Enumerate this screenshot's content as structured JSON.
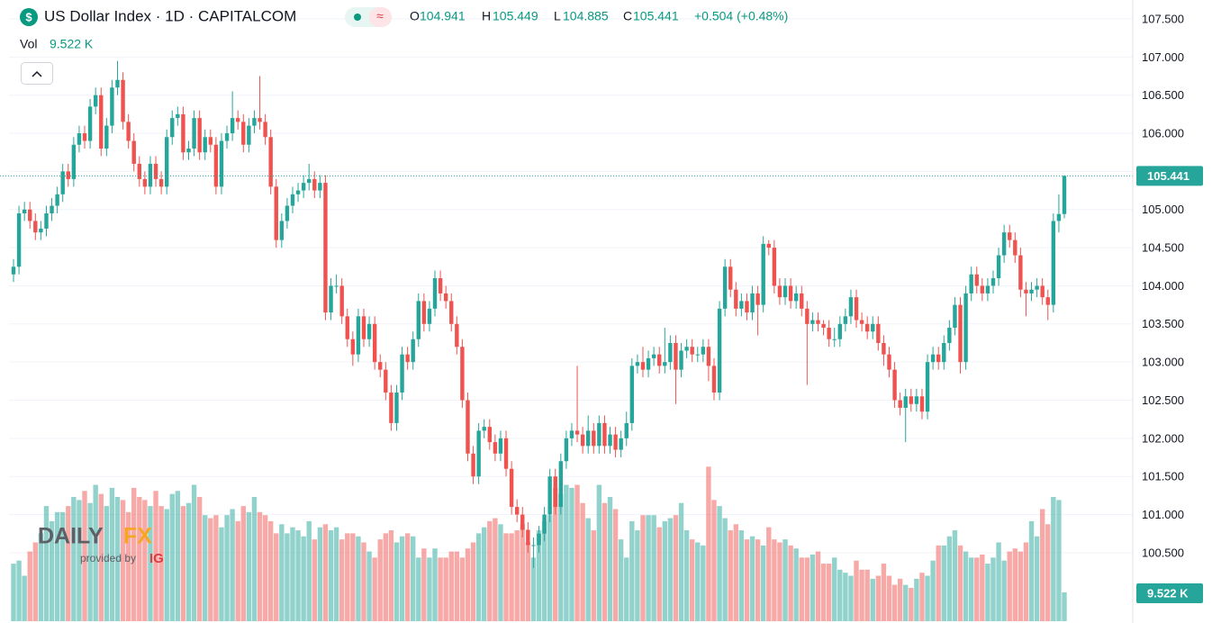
{
  "chart_data": {
    "type": "candlestick",
    "title": "US Dollar Index · 1D · CAPITALCOM",
    "ohlc_letters": [
      "O",
      "H",
      "L",
      "C"
    ],
    "change_label": "+0.504 (+0.48%)",
    "volume_title": "Vol",
    "last_volume_label": "9.522 K",
    "up_color": "#26a69a",
    "down_color": "#ef5350",
    "grid": true,
    "ylim": [
      99.578,
      107.748
    ],
    "volume_lim": [
      0,
      205
    ],
    "yticks": [
      {
        "value": 100.5,
        "label": "100.500"
      },
      {
        "value": 101,
        "label": "101.000"
      },
      {
        "value": 101.5,
        "label": "101.500"
      },
      {
        "value": 102,
        "label": "102.000"
      },
      {
        "value": 102.5,
        "label": "102.500"
      },
      {
        "value": 103,
        "label": "103.000"
      },
      {
        "value": 103.5,
        "label": "103.500"
      },
      {
        "value": 104,
        "label": "104.000"
      },
      {
        "value": 104.5,
        "label": "104.500"
      },
      {
        "value": 105,
        "label": "105.000"
      },
      {
        "value": 105.5,
        "label": "105.500"
      },
      {
        "value": 106,
        "label": "106.000"
      },
      {
        "value": 106.5,
        "label": "106.500"
      },
      {
        "value": 107,
        "label": "107.000"
      },
      {
        "value": 107.5,
        "label": "107.500"
      }
    ],
    "open": [
      104.15,
      104.25,
      104.95,
      105.0,
      104.85,
      104.7,
      104.75,
      104.95,
      105.05,
      105.2,
      105.5,
      105.4,
      105.85,
      106.0,
      105.9,
      106.35,
      106.5,
      105.8,
      106.1,
      106.6,
      106.7,
      106.15,
      105.9,
      105.6,
      105.4,
      105.3,
      105.6,
      105.4,
      105.3,
      105.95,
      106.2,
      106.25,
      105.75,
      105.8,
      106.2,
      105.75,
      105.95,
      105.85,
      105.3,
      105.9,
      106.0,
      106.2,
      106.15,
      105.85,
      106.1,
      106.2,
      106.15,
      105.95,
      105.3,
      104.6,
      104.85,
      105.05,
      105.2,
      105.25,
      105.35,
      105.4,
      105.25,
      105.35,
      103.65,
      104.0,
      104.0,
      103.6,
      103.3,
      103.1,
      103.6,
      103.3,
      103.5,
      103.0,
      102.9,
      102.6,
      102.2,
      102.6,
      103.1,
      103.0,
      103.3,
      103.8,
      103.5,
      103.7,
      104.1,
      103.9,
      103.8,
      103.5,
      103.2,
      102.5,
      101.8,
      101.5,
      102.1,
      102.15,
      101.95,
      101.8,
      102.0,
      101.6,
      101.1,
      101.0,
      100.8,
      100.6,
      100.6,
      100.75,
      101.0,
      101.5,
      101.1,
      101.7,
      102.0,
      102.1,
      102.05,
      101.9,
      102.1,
      101.9,
      102.2,
      101.9,
      102.05,
      101.85,
      102.0,
      102.2,
      102.95,
      103.0,
      102.9,
      103.05,
      103.1,
      102.95,
      103.0,
      103.25,
      102.9,
      103.15,
      103.2,
      103.1,
      103.1,
      103.2,
      102.95,
      102.6,
      103.7,
      104.25,
      103.95,
      103.7,
      103.8,
      103.65,
      103.9,
      103.75,
      104.55,
      104.5,
      104.0,
      103.85,
      104.0,
      103.8,
      103.9,
      103.7,
      103.5,
      103.55,
      103.5,
      103.45,
      103.3,
      103.3,
      103.5,
      103.6,
      103.85,
      103.55,
      103.5,
      103.4,
      103.5,
      103.25,
      103.1,
      102.9,
      102.5,
      102.4,
      102.55,
      102.45,
      102.55,
      102.35,
      103.0,
      103.1,
      103.0,
      103.25,
      103.45,
      103.75,
      103.0,
      103.9,
      104.15,
      104.0,
      103.9,
      104.0,
      104.1,
      104.4,
      104.7,
      104.6,
      104.4,
      103.95,
      103.9,
      103.95,
      104.0,
      103.85,
      103.75,
      104.85,
      104.941
    ],
    "high": [
      104.35,
      105.05,
      105.1,
      105.1,
      104.95,
      104.85,
      105.05,
      105.15,
      105.3,
      105.6,
      105.6,
      105.95,
      106.1,
      106.1,
      106.45,
      106.6,
      106.6,
      106.2,
      106.7,
      106.95,
      106.8,
      106.25,
      106.0,
      105.7,
      105.5,
      105.7,
      105.7,
      105.5,
      106.05,
      106.3,
      106.35,
      106.35,
      105.9,
      106.3,
      106.3,
      106.05,
      106.05,
      105.95,
      106.0,
      106.1,
      106.55,
      106.3,
      106.25,
      106.2,
      106.3,
      106.75,
      106.25,
      106.05,
      105.4,
      104.95,
      105.15,
      105.3,
      105.35,
      105.45,
      105.6,
      105.5,
      105.45,
      105.45,
      104.1,
      104.15,
      104.1,
      103.7,
      103.4,
      103.7,
      103.7,
      103.6,
      103.6,
      103.1,
      103.0,
      102.7,
      102.7,
      103.2,
      103.2,
      103.4,
      103.9,
      103.9,
      103.8,
      104.2,
      104.2,
      104.0,
      103.9,
      103.6,
      103.3,
      102.6,
      101.9,
      102.2,
      102.25,
      102.25,
      102.05,
      102.1,
      102.1,
      101.7,
      101.2,
      101.1,
      100.9,
      100.7,
      100.85,
      101.1,
      101.6,
      101.6,
      101.8,
      102.1,
      102.2,
      102.95,
      102.15,
      102.3,
      102.2,
      102.3,
      102.3,
      102.15,
      102.15,
      102.1,
      102.35,
      103.05,
      103.1,
      103.2,
      103.15,
      103.2,
      103.2,
      103.45,
      103.35,
      103.35,
      103.25,
      103.3,
      103.3,
      103.2,
      103.3,
      103.3,
      103.05,
      103.8,
      104.35,
      104.35,
      104.05,
      103.9,
      103.9,
      104.0,
      104.0,
      104.65,
      104.6,
      104.6,
      104.1,
      104.1,
      104.1,
      104.0,
      104.0,
      103.8,
      103.65,
      103.65,
      103.55,
      103.55,
      103.45,
      103.6,
      103.7,
      103.95,
      103.95,
      103.65,
      103.6,
      103.6,
      103.6,
      103.35,
      103.2,
      103.0,
      102.6,
      102.65,
      102.65,
      102.65,
      102.65,
      103.1,
      103.2,
      103.2,
      103.35,
      103.55,
      103.85,
      103.85,
      104.0,
      104.25,
      104.25,
      104.1,
      104.1,
      104.2,
      104.5,
      104.8,
      104.8,
      104.7,
      104.5,
      104.05,
      104.05,
      104.1,
      104.1,
      103.95,
      104.95,
      105.2,
      105.449
    ],
    "low": [
      104.05,
      104.15,
      104.85,
      104.75,
      104.6,
      104.6,
      104.65,
      104.85,
      104.95,
      105.1,
      105.3,
      105.3,
      105.75,
      105.8,
      105.8,
      106.25,
      105.7,
      105.7,
      106.0,
      106.5,
      106.05,
      105.8,
      105.5,
      105.3,
      105.2,
      105.2,
      105.3,
      105.2,
      105.2,
      105.85,
      106.1,
      105.65,
      105.65,
      105.7,
      105.65,
      105.65,
      105.75,
      105.2,
      105.2,
      105.8,
      105.9,
      106.05,
      105.75,
      105.75,
      106.0,
      106.05,
      105.85,
      105.2,
      104.5,
      104.5,
      104.75,
      104.95,
      105.1,
      105.15,
      105.25,
      105.15,
      105.15,
      103.55,
      103.55,
      103.9,
      103.5,
      103.2,
      102.95,
      103.0,
      103.2,
      103.2,
      102.9,
      102.8,
      102.5,
      102.1,
      102.1,
      102.5,
      102.9,
      102.9,
      103.2,
      103.4,
      103.4,
      103.6,
      103.8,
      103.7,
      103.4,
      103.1,
      102.4,
      101.7,
      101.4,
      101.4,
      102.0,
      101.85,
      101.7,
      101.7,
      101.5,
      101.0,
      100.9,
      100.7,
      100.5,
      100.3,
      100.5,
      100.65,
      100.9,
      101.0,
      101.0,
      101.6,
      101.9,
      101.95,
      101.8,
      101.8,
      101.8,
      101.8,
      101.8,
      101.8,
      101.75,
      101.75,
      101.9,
      102.1,
      102.85,
      102.8,
      102.8,
      102.95,
      102.85,
      102.85,
      102.9,
      102.45,
      102.8,
      103.05,
      103.0,
      103.0,
      103.0,
      102.75,
      102.5,
      102.5,
      103.6,
      103.85,
      103.6,
      103.6,
      103.55,
      103.55,
      103.35,
      103.65,
      104.4,
      103.9,
      103.75,
      103.75,
      103.7,
      103.7,
      103.6,
      102.7,
      103.4,
      103.4,
      103.35,
      103.2,
      103.2,
      103.2,
      103.4,
      103.5,
      103.45,
      103.4,
      103.3,
      103.3,
      103.15,
      102.95,
      102.8,
      102.4,
      102.3,
      101.95,
      102.35,
      102.35,
      102.25,
      102.25,
      102.9,
      102.9,
      102.9,
      103.15,
      103.35,
      102.85,
      102.9,
      103.8,
      103.9,
      103.8,
      103.8,
      103.9,
      104.0,
      104.3,
      104.5,
      104.3,
      103.85,
      103.6,
      103.8,
      103.85,
      103.75,
      103.55,
      103.65,
      104.7,
      104.885
    ],
    "close": [
      104.25,
      104.95,
      105.0,
      104.85,
      104.7,
      104.75,
      104.95,
      105.05,
      105.2,
      105.5,
      105.4,
      105.85,
      106.0,
      105.9,
      106.35,
      106.5,
      105.8,
      106.1,
      106.6,
      106.7,
      106.15,
      105.9,
      105.6,
      105.4,
      105.3,
      105.6,
      105.4,
      105.3,
      105.95,
      106.2,
      106.25,
      105.75,
      105.8,
      106.2,
      105.75,
      105.95,
      105.85,
      105.3,
      105.9,
      106.0,
      106.2,
      106.15,
      105.85,
      106.1,
      106.2,
      106.15,
      105.95,
      105.3,
      104.6,
      104.85,
      105.05,
      105.2,
      105.25,
      105.35,
      105.4,
      105.25,
      105.35,
      103.65,
      104.0,
      104.0,
      103.6,
      103.3,
      103.1,
      103.6,
      103.3,
      103.5,
      103.0,
      102.9,
      102.6,
      102.2,
      102.6,
      103.1,
      103.0,
      103.3,
      103.8,
      103.5,
      103.7,
      104.1,
      103.9,
      103.8,
      103.5,
      103.2,
      102.5,
      101.8,
      101.5,
      102.1,
      102.15,
      101.95,
      101.8,
      102.0,
      101.6,
      101.1,
      101.0,
      100.8,
      100.6,
      100.6,
      100.75,
      101.0,
      101.5,
      101.1,
      101.7,
      102.0,
      102.1,
      102.05,
      101.9,
      102.1,
      101.9,
      102.2,
      101.9,
      102.05,
      101.85,
      102.0,
      102.2,
      102.95,
      103.0,
      102.9,
      103.05,
      103.1,
      102.95,
      103.0,
      103.25,
      102.9,
      103.15,
      103.2,
      103.1,
      103.1,
      103.2,
      102.95,
      102.6,
      103.7,
      104.25,
      103.95,
      103.7,
      103.8,
      103.65,
      103.9,
      103.75,
      104.55,
      104.5,
      104.0,
      103.85,
      104.0,
      103.8,
      103.9,
      103.7,
      103.5,
      103.55,
      103.5,
      103.45,
      103.3,
      103.3,
      103.5,
      103.6,
      103.85,
      103.55,
      103.5,
      103.4,
      103.5,
      103.25,
      103.1,
      102.9,
      102.5,
      102.4,
      102.55,
      102.45,
      102.55,
      102.35,
      103.0,
      103.1,
      103.0,
      103.25,
      103.45,
      103.75,
      103.0,
      103.9,
      104.15,
      104.0,
      103.9,
      104.0,
      104.1,
      104.4,
      104.7,
      104.6,
      104.4,
      103.95,
      103.9,
      103.95,
      104.0,
      103.85,
      103.75,
      104.85,
      104.941,
      105.441
    ],
    "volume": [
      19,
      20,
      15,
      23,
      26,
      29,
      38,
      33,
      36,
      36,
      38,
      41,
      40,
      43,
      39,
      45,
      42,
      38,
      44,
      41,
      40,
      36,
      44,
      41,
      40,
      38,
      43,
      38,
      37,
      42,
      43,
      38,
      39,
      45,
      41,
      35,
      34,
      35,
      31,
      35,
      37,
      33,
      38,
      36,
      41,
      36,
      35,
      33,
      29,
      32,
      29,
      31,
      30,
      28,
      33,
      27,
      31,
      32,
      30,
      31,
      27,
      29,
      29,
      28,
      26,
      23,
      21,
      27,
      29,
      30,
      26,
      28,
      29,
      28,
      21,
      24,
      21,
      24,
      21,
      21,
      23,
      23,
      21,
      24,
      26,
      29,
      31,
      33,
      34,
      32,
      29,
      29,
      30,
      32,
      26,
      21,
      30,
      33,
      35,
      44,
      42,
      45,
      44,
      45,
      39,
      34,
      30,
      45,
      39,
      41,
      37,
      27,
      21,
      33,
      30,
      35,
      35,
      35,
      31,
      33,
      34,
      35,
      39,
      30,
      27,
      26,
      25,
      51,
      40,
      38,
      34,
      30,
      32,
      30,
      27,
      28,
      27,
      25,
      31,
      27,
      26,
      27,
      25,
      24,
      21,
      21,
      22,
      23,
      19,
      19,
      21,
      17,
      16,
      15,
      20,
      17,
      17,
      14,
      15,
      19,
      15,
      12,
      14,
      12,
      11,
      14,
      16,
      15,
      20,
      25,
      25,
      28,
      30,
      25,
      23,
      21,
      21,
      22,
      19,
      21,
      26,
      20,
      23,
      24,
      23,
      26,
      33,
      28,
      37,
      32,
      41,
      40,
      9.522
    ]
  },
  "watermark": {
    "brand_left": "DAILY",
    "brand_right": "FX",
    "provided": "provided by",
    "provider": "IG"
  }
}
